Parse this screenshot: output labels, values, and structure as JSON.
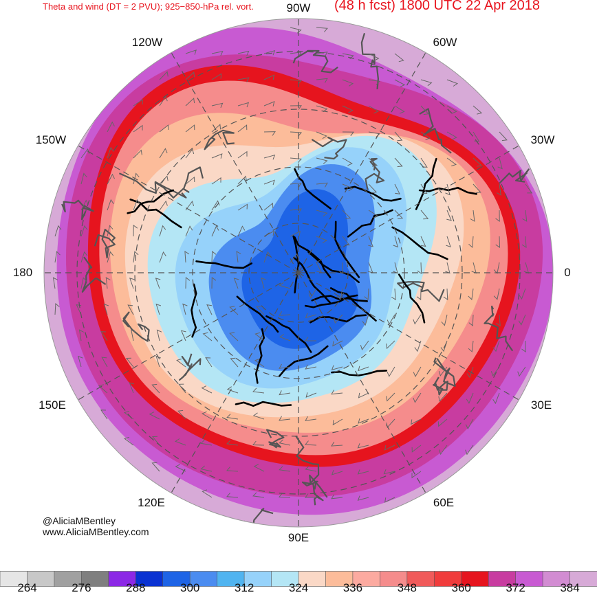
{
  "title": {
    "left": "Theta and wind (DT = 2 PVU); 925−850-hPa rel. vort.",
    "right": "(48 h fcst) 1800 UTC 22 Apr 2018"
  },
  "longitude_labels": [
    {
      "key": "90W",
      "text": "90W"
    },
    {
      "key": "60W",
      "text": "60W"
    },
    {
      "key": "30W",
      "text": "30W"
    },
    {
      "key": "0",
      "text": "0"
    },
    {
      "key": "30E",
      "text": "30E"
    },
    {
      "key": "60E",
      "text": "60E"
    },
    {
      "key": "90E",
      "text": "90E"
    },
    {
      "key": "120E",
      "text": "120E"
    },
    {
      "key": "150E",
      "text": "150E"
    },
    {
      "key": "180",
      "text": "180"
    },
    {
      "key": "150W",
      "text": "150W"
    },
    {
      "key": "120W",
      "text": "120W"
    }
  ],
  "credits": {
    "handle": "@AliciaMBentley",
    "website": "www.AliciaMBentley.com"
  },
  "colorbar": {
    "colors": [
      "#e6e6e6",
      "#c8c8c8",
      "#a0a0a0",
      "#7f7f7f",
      "#8c28e6",
      "#0a32d2",
      "#1e64e6",
      "#4b8cf0",
      "#50b4f0",
      "#96d2fa",
      "#b4e6f5",
      "#fad8c6",
      "#fcbc9a",
      "#fcaaa0",
      "#f58c8c",
      "#f05a5a",
      "#f03c3c",
      "#e6141e",
      "#c83ca0",
      "#c85ad2",
      "#d28cd2",
      "#d7aad7"
    ],
    "labels": [
      "264",
      "276",
      "288",
      "300",
      "312",
      "324",
      "336",
      "348",
      "360",
      "372",
      "384"
    ]
  },
  "map_colors": {
    "pole_deep": "#1e64e6",
    "pole_inner": "#4b8cf0",
    "cold_mid": "#96d2fa",
    "cold_edge": "#b4e6f5",
    "warm_edge": "#fad8c6",
    "warm_mid": "#fcbc9a",
    "warm_salmon": "#f58c8c",
    "warm_red": "#e6141e",
    "subtropic_magenta": "#c83ca0",
    "subtropic_violet": "#c85ad2",
    "tropic_lilac": "#d7aad7"
  }
}
